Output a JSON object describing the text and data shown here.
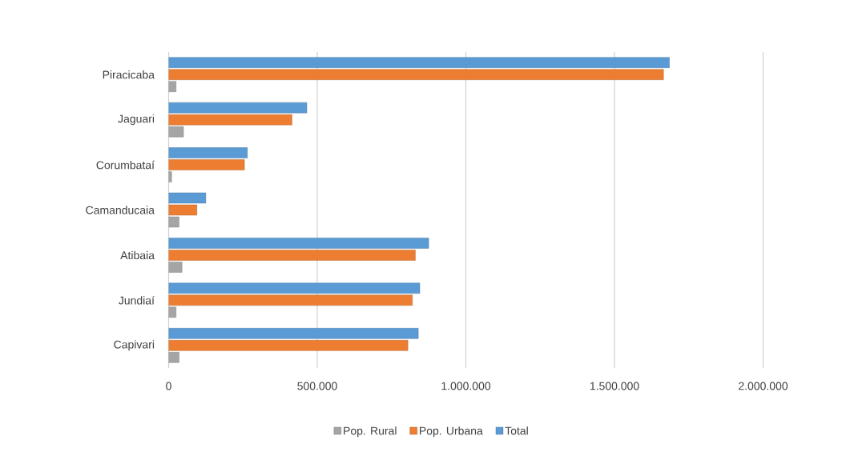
{
  "chart_data": {
    "type": "bar",
    "orientation": "horizontal",
    "categories": [
      "Piracicaba",
      "Jaguari",
      "Corumbataí",
      "Camanducaia",
      "Atibaia",
      "Jundiaí",
      "Capivari"
    ],
    "series": [
      {
        "name": "Pop. Rural",
        "color": "#a5a5a5",
        "values": [
          25000,
          50000,
          10000,
          35000,
          45000,
          25000,
          35000
        ]
      },
      {
        "name": "Pop. Urbana",
        "color": "#ed7d31",
        "values": [
          1665000,
          415000,
          255000,
          95000,
          830000,
          820000,
          805000
        ]
      },
      {
        "name": "Total",
        "color": "#5b9bd5",
        "values": [
          1685000,
          465000,
          265000,
          125000,
          875000,
          845000,
          840000
        ]
      }
    ],
    "xlim": [
      0,
      2000000
    ],
    "xticks": [
      0,
      {
        "value": 500000,
        "label": "500.000"
      },
      {
        "value": 1000000,
        "label": "1.000.000"
      },
      {
        "value": 1500000,
        "label": "1.500.000"
      },
      {
        "value": 2000000,
        "label": "2.000.000"
      }
    ],
    "grid": "x",
    "legend": "bottom"
  }
}
